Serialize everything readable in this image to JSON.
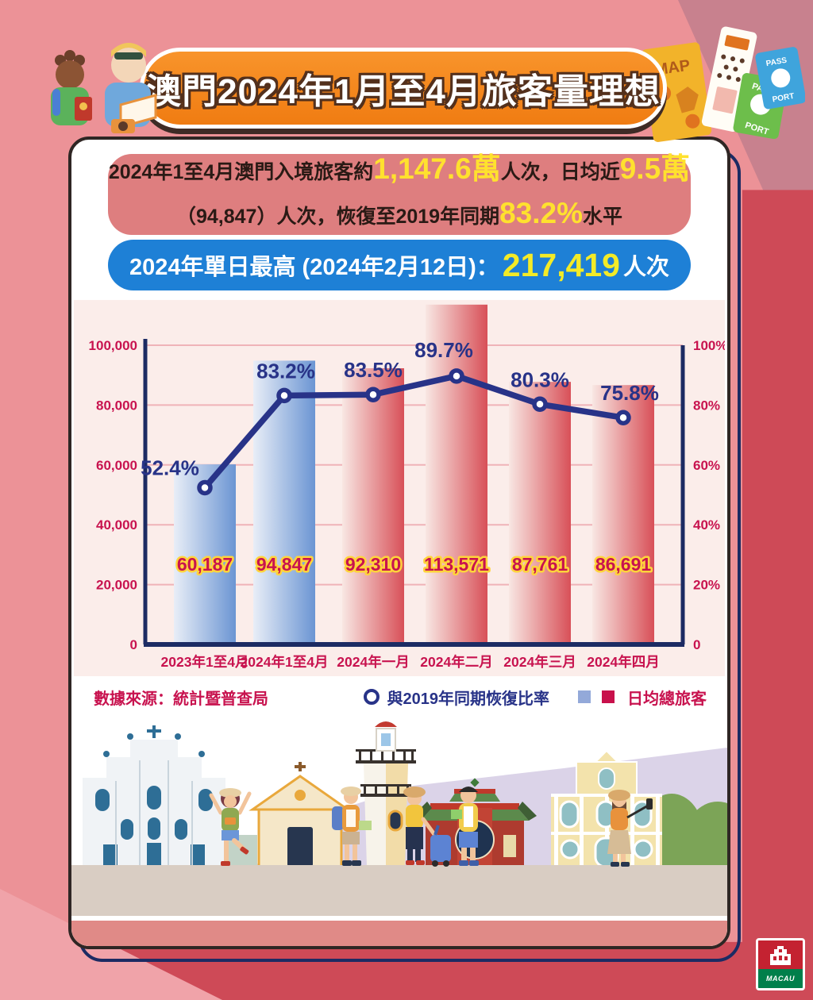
{
  "header": {
    "title": "澳門2024年1月至4月旅客量理想"
  },
  "summary_box": {
    "part1": "2024年1至4月澳門入境旅客約",
    "big1": "1,147.6萬",
    "part2": "人次，日均近",
    "big2": "9.5萬",
    "part3": "（94,847）人次，恢復至2019年同期",
    "big3": "83.2%",
    "part4": "水平"
  },
  "peak_box": {
    "prefix": "2024年單日最高 (2024年2月12日)：",
    "value": "217,419",
    "suffix": "人次"
  },
  "chart_data": {
    "type": "bar",
    "title": "",
    "categories": [
      "2023年1至4月",
      "2024年1至4月",
      "2024年一月",
      "2024年二月",
      "2024年三月",
      "2024年四月"
    ],
    "series": [
      {
        "name": "日均總旅客",
        "type": "bar",
        "values": [
          60187,
          94847,
          92310,
          113571,
          87761,
          86691
        ],
        "labels": [
          "60,187",
          "94,847",
          "92,310",
          "113,571",
          "87,761",
          "86,691"
        ],
        "bar_palette": [
          "blue",
          "blue",
          "red",
          "red",
          "red",
          "red"
        ]
      },
      {
        "name": "與2019年同期恢復比率",
        "type": "line",
        "values": [
          52.4,
          83.2,
          83.5,
          89.7,
          80.3,
          75.8
        ],
        "labels": [
          "52.4%",
          "83.2%",
          "83.5%",
          "89.7%",
          "80.3%",
          "75.8%"
        ]
      }
    ],
    "left_axis": {
      "max": 100000,
      "ticks": [
        "0",
        "20,000",
        "40,000",
        "60,000",
        "80,000",
        "100,000"
      ]
    },
    "right_axis": {
      "max": 100,
      "ticks": [
        "0",
        "20%",
        "40%",
        "60%",
        "80%",
        "100%"
      ]
    },
    "grid": true,
    "legend_position": "bottom-right",
    "colors": {
      "bar_blue_start": "#E9EEF7",
      "bar_blue_end": "#6B95D3",
      "bar_red_start": "#F8E7E3",
      "bar_red_end": "#D85058",
      "line": "#283388",
      "axis": "#1C2B63",
      "tick_label": "#C8134F",
      "value_label": "#C8134F",
      "value_label_outline": "#FFD43B",
      "grid_line": "#EFB3B8",
      "panel_bg": "#FBEDEA",
      "banner": "#F6871E",
      "page_bg": "#EC9297",
      "accent_crimson": "#CE4A57"
    }
  },
  "footer": {
    "source": "數據來源：統計暨普查局",
    "legend_line_label": "與2019年同期恢復比率",
    "legend_bar_label": "日均總旅客"
  },
  "decor": {
    "map_label": "MAP",
    "passport_top": "PASS",
    "passport_bottom": "PORT",
    "logo_text": "MACAU"
  }
}
